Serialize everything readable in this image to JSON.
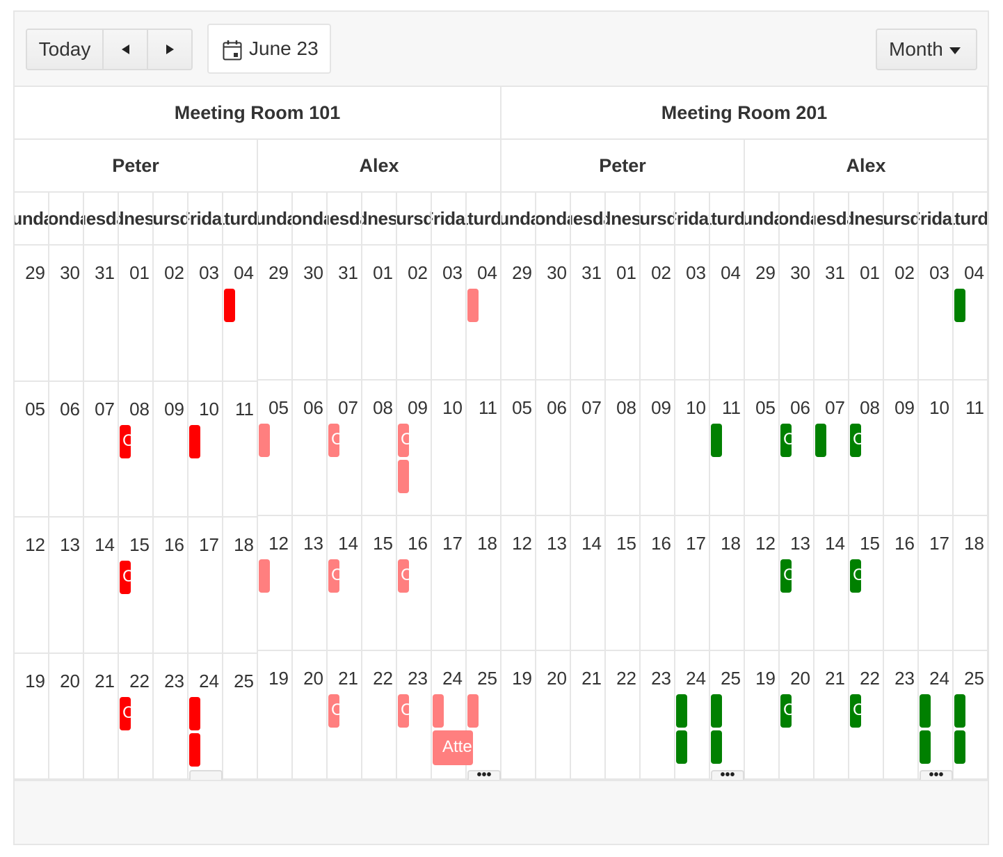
{
  "toolbar": {
    "today_label": "Today",
    "prev_icon": "triangle-left-icon",
    "next_icon": "triangle-right-icon",
    "date_label": "June 23",
    "date_icon": "calendar-icon",
    "view_label": "Month"
  },
  "colors": {
    "room101_peter": "#ff0000",
    "room101_alex": "#ff7f7f",
    "room201": "#008000",
    "border": "#e6e6e6"
  },
  "rooms": [
    "Meeting Room 101",
    "Meeting Room 201"
  ],
  "people": [
    "Peter",
    "Alex"
  ],
  "weekdays": [
    "Sunday",
    "Monday",
    "Tuesday",
    "Wednesday",
    "Thursday",
    "Friday",
    "Saturday"
  ],
  "weeks": [
    [
      "29",
      "30",
      "31",
      "01",
      "02",
      "03",
      "04"
    ],
    [
      "05",
      "06",
      "07",
      "08",
      "09",
      "10",
      "11"
    ],
    [
      "12",
      "13",
      "14",
      "15",
      "16",
      "17",
      "18"
    ],
    [
      "19",
      "20",
      "21",
      "22",
      "23",
      "24",
      "25"
    ]
  ],
  "events": {
    "r0p0": [
      [
        0,
        6,
        0,
        ""
      ],
      [
        1,
        3,
        0,
        "C"
      ],
      [
        1,
        5,
        0,
        ""
      ],
      [
        2,
        3,
        0,
        "C"
      ],
      [
        3,
        3,
        0,
        "C"
      ],
      [
        3,
        5,
        0,
        ""
      ],
      [
        3,
        5,
        1,
        ""
      ]
    ],
    "r0p1": [
      [
        0,
        6,
        0,
        ""
      ],
      [
        1,
        0,
        0,
        ""
      ],
      [
        1,
        2,
        0,
        "C"
      ],
      [
        1,
        4,
        0,
        "C"
      ],
      [
        1,
        4,
        1,
        ""
      ],
      [
        2,
        0,
        0,
        ""
      ],
      [
        2,
        2,
        0,
        "C"
      ],
      [
        2,
        4,
        0,
        "C"
      ],
      [
        3,
        2,
        0,
        "C"
      ],
      [
        3,
        4,
        0,
        "C"
      ],
      [
        3,
        5,
        0,
        ""
      ],
      [
        3,
        6,
        0,
        ""
      ]
    ],
    "r1p0": [
      [
        1,
        6,
        0,
        ""
      ],
      [
        3,
        5,
        0,
        ""
      ],
      [
        3,
        5,
        1,
        ""
      ],
      [
        3,
        6,
        0,
        ""
      ],
      [
        3,
        6,
        1,
        ""
      ]
    ],
    "r1p1": [
      [
        0,
        6,
        0,
        ""
      ],
      [
        1,
        1,
        0,
        "C"
      ],
      [
        1,
        2,
        0,
        ""
      ],
      [
        1,
        3,
        0,
        "C"
      ],
      [
        2,
        1,
        0,
        "C"
      ],
      [
        2,
        3,
        0,
        "C"
      ],
      [
        3,
        1,
        0,
        "C"
      ],
      [
        3,
        3,
        0,
        "C"
      ],
      [
        3,
        5,
        0,
        ""
      ],
      [
        3,
        5,
        1,
        ""
      ],
      [
        3,
        6,
        0,
        ""
      ],
      [
        3,
        6,
        1,
        ""
      ]
    ]
  },
  "wide_event": {
    "group": "r0p1",
    "week": 3,
    "day": 5,
    "row": 1,
    "label": "Attend HR"
  },
  "more_buttons": [
    {
      "group": "r0p0",
      "week": 3,
      "day": 5,
      "label": ""
    },
    {
      "group": "r0p1",
      "week": 3,
      "day": 6,
      "label": "•••"
    },
    {
      "group": "r1p0",
      "week": 3,
      "day": 6,
      "label": "•••"
    },
    {
      "group": "r1p1",
      "week": 3,
      "day": 5,
      "label": "•••"
    }
  ]
}
